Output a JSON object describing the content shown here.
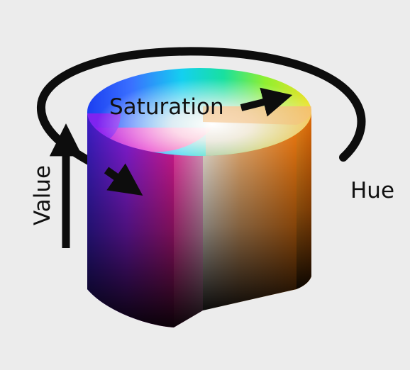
{
  "labels": {
    "saturation": "Saturation",
    "value": "Value",
    "hue": "Hue"
  },
  "colors": {
    "background": "#ececec",
    "arrow": "#0d0d0d",
    "text": "#111111"
  }
}
